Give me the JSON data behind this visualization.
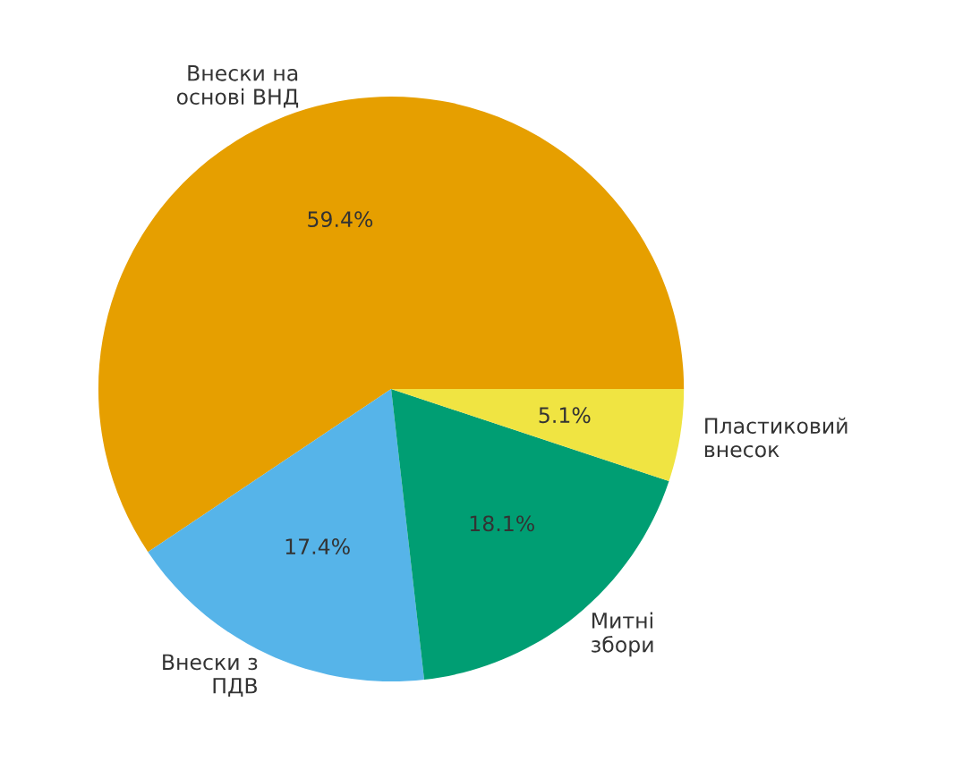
{
  "chart_data": {
    "type": "pie",
    "categories": [
      "Внески на\nоснові ВНД",
      "Внески з\nПДВ",
      "Митні\nзбори",
      "Пластиковий\nвнесок"
    ],
    "values": [
      59.4,
      17.4,
      18.1,
      5.1
    ],
    "value_labels": [
      "59.4%",
      "17.4%",
      "18.1%",
      "5.1%"
    ],
    "colors": [
      "#e69f00",
      "#56b4e9",
      "#009e73",
      "#f0e442"
    ]
  }
}
